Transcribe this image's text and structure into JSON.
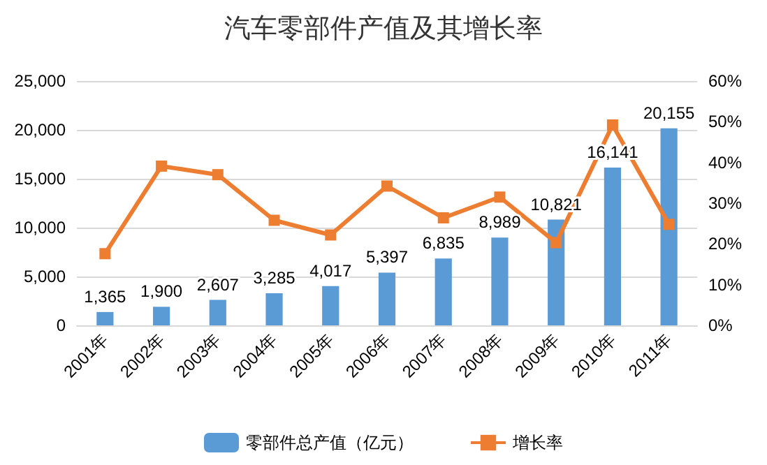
{
  "chart_data": {
    "type": "bar",
    "title": "汽车零部件产值及其增长率",
    "categories": [
      "2001年",
      "2002年",
      "2003年",
      "2004年",
      "2005年",
      "2006年",
      "2007年",
      "2008年",
      "2009年",
      "2010年",
      "2011年"
    ],
    "series": [
      {
        "name": "零部件总产值（亿元）",
        "color": "#5b9bd5",
        "values": [
          1365,
          1900,
          2607,
          3285,
          4017,
          5397,
          6835,
          8989,
          10821,
          16141,
          20155
        ],
        "value_labels": [
          "1,365",
          "1,900",
          "2,607",
          "3,285",
          "4,017",
          "5,397",
          "6,835",
          "8,989",
          "10,821",
          "16,141",
          "20,155"
        ]
      },
      {
        "name": "增长率",
        "type": "line",
        "axis": "y2",
        "color": "#ed7d31",
        "marker": "square",
        "values": [
          17.6,
          39.1,
          37,
          25.8,
          22.2,
          34.2,
          26.4,
          31.5,
          20.3,
          49.2,
          24.8
        ]
      }
    ],
    "ylim": [
      0,
      25000
    ],
    "yticks": [
      {
        "value": 0,
        "label": "0"
      },
      {
        "value": 5000,
        "label": "5,000"
      },
      {
        "value": 10000,
        "label": "10,000"
      },
      {
        "value": 15000,
        "label": "15,000"
      },
      {
        "value": 20000,
        "label": "20,000"
      },
      {
        "value": 25000,
        "label": "25,000"
      }
    ],
    "y2lim": [
      0,
      60
    ],
    "y2ticks": [
      {
        "value": 0,
        "label": "0%"
      },
      {
        "value": 10,
        "label": "10%"
      },
      {
        "value": 20,
        "label": "20%"
      },
      {
        "value": 30,
        "label": "30%"
      },
      {
        "value": 40,
        "label": "40%"
      },
      {
        "value": 50,
        "label": "50%"
      },
      {
        "value": 60,
        "label": "60%"
      }
    ],
    "grid": "y",
    "legend": "bottom"
  }
}
